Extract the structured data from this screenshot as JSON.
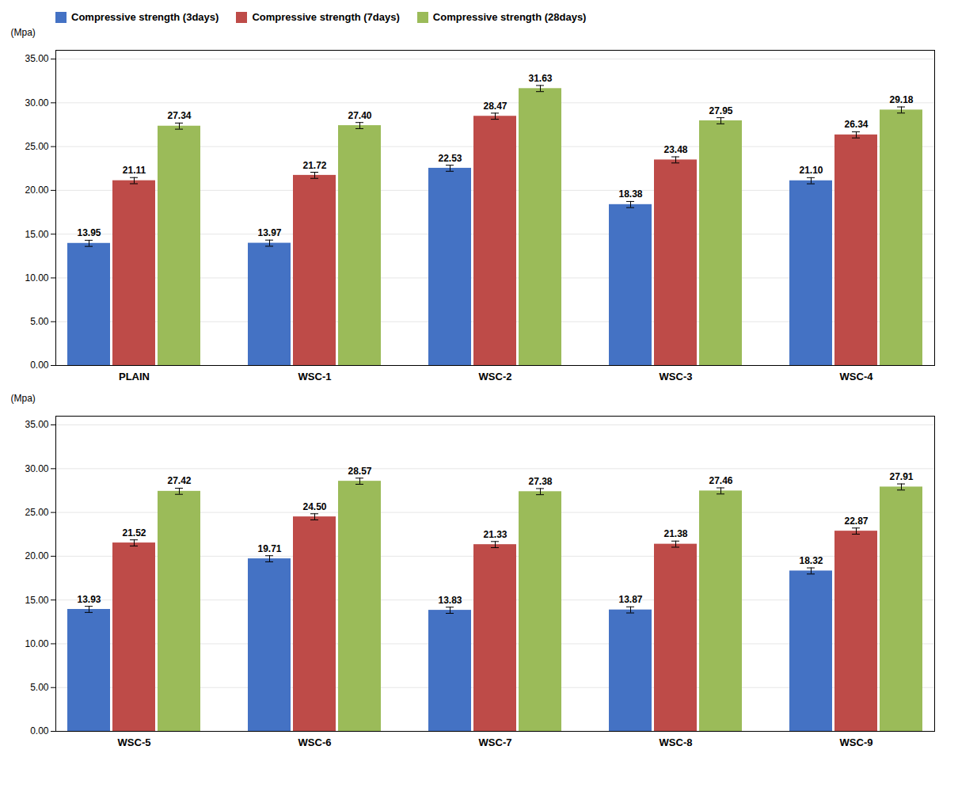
{
  "chart_data": [
    {
      "type": "bar",
      "categories": [
        "PLAIN",
        "WSC-1",
        "WSC-2",
        "WSC-3",
        "WSC-4"
      ],
      "series": [
        {
          "name": "Compressive strength (3days)",
          "color": "#4472C4",
          "values": [
            13.95,
            13.97,
            22.53,
            18.38,
            21.1
          ],
          "value_labels": [
            "13.95",
            "13.97",
            "22.53",
            "18.38",
            "21.10"
          ]
        },
        {
          "name": "Compressive strength (7days)",
          "color": "#BE4B48",
          "values": [
            21.11,
            21.72,
            28.47,
            23.48,
            26.34
          ],
          "value_labels": [
            "21.11",
            "21.72",
            "28.47",
            "23.48",
            "26.34"
          ]
        },
        {
          "name": "Compressive strength (28days)",
          "color": "#9BBB59",
          "values": [
            27.34,
            27.4,
            31.63,
            27.95,
            29.18
          ],
          "value_labels": [
            "27.34",
            "27.40",
            "31.63",
            "27.95",
            "29.18"
          ]
        }
      ],
      "error_bar": 0.35,
      "y_label": "(Mpa)",
      "ylim": [
        0,
        36
      ],
      "yticks": [
        {
          "value": 0,
          "label": "0.00"
        },
        {
          "value": 5,
          "label": "5.00"
        },
        {
          "value": 10,
          "label": "10.00"
        },
        {
          "value": 15,
          "label": "15.00"
        },
        {
          "value": 20,
          "label": "20.00"
        },
        {
          "value": 25,
          "label": "25.00"
        },
        {
          "value": 30,
          "label": "30.00"
        },
        {
          "value": 35,
          "label": "35.00"
        }
      ],
      "grid": true,
      "data_labels": true,
      "legend": "upper left"
    },
    {
      "type": "bar",
      "categories": [
        "WSC-5",
        "WSC-6",
        "WSC-7",
        "WSC-8",
        "WSC-9"
      ],
      "series": [
        {
          "name": "Compressive strength (3days)",
          "color": "#4472C4",
          "values": [
            13.93,
            19.71,
            13.83,
            13.87,
            18.32
          ],
          "value_labels": [
            "13.93",
            "19.71",
            "13.83",
            "13.87",
            "18.32"
          ]
        },
        {
          "name": "Compressive strength (7days)",
          "color": "#BE4B48",
          "values": [
            21.52,
            24.5,
            21.33,
            21.38,
            22.87
          ],
          "value_labels": [
            "21.52",
            "24.50",
            "21.33",
            "21.38",
            "22.87"
          ]
        },
        {
          "name": "Compressive strength (28days)",
          "color": "#9BBB59",
          "values": [
            27.42,
            28.57,
            27.38,
            27.46,
            27.91
          ],
          "value_labels": [
            "27.42",
            "28.57",
            "27.38",
            "27.46",
            "27.91"
          ]
        }
      ],
      "error_bar": 0.35,
      "y_label": "(Mpa)",
      "ylim": [
        0,
        36
      ],
      "yticks": [
        {
          "value": 0,
          "label": "0.00"
        },
        {
          "value": 5,
          "label": "5.00"
        },
        {
          "value": 10,
          "label": "10.00"
        },
        {
          "value": 15,
          "label": "15.00"
        },
        {
          "value": 20,
          "label": "20.00"
        },
        {
          "value": 25,
          "label": "25.00"
        },
        {
          "value": 30,
          "label": "30.00"
        },
        {
          "value": 35,
          "label": "35.00"
        }
      ],
      "grid": true,
      "data_labels": true
    }
  ]
}
